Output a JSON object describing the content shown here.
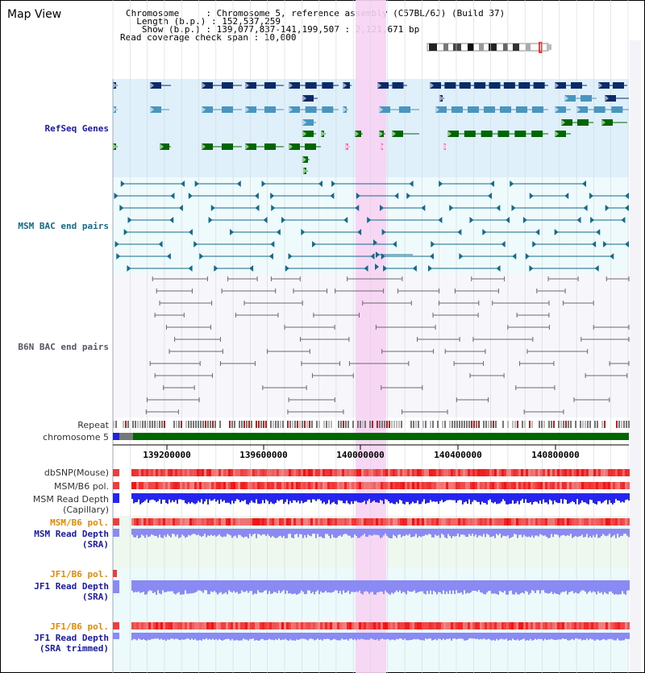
{
  "map_view": {
    "title": "Map View"
  },
  "info": {
    "chromosome": "Chromosome     : Chromosome 5, reference assembly (C57BL/6J) (Build 37)",
    "length": "  Length (b.p.) : 152,537,259",
    "show": "   Show (b.p.) : 139,077,837-141,199,507 : 2,121,671 bp",
    "read_span": "Read coverage check span : 10,000"
  },
  "tracks": {
    "refseq": "RefSeq Genes",
    "msm_bac": "MSM BAC end pairs",
    "b6n_bac": "B6N BAC end pairs",
    "repeat": "Repeat",
    "chromosome": "chromosome 5",
    "dbsnp": "dbSNP(Mouse)",
    "msm_b6_pol_1": "MSM/B6 pol.",
    "msm_read_depth_cap_1": "MSM Read Depth",
    "msm_read_depth_cap_2": "(Capillary)",
    "msm_b6_pol_2": "MSM/B6 pol.",
    "msm_read_depth_sra_1": "MSM Read Depth",
    "msm_read_depth_sra_2": "(SRA)",
    "jf1_b6_pol_1": "JF1/B6 pol.",
    "jf1_read_depth_sra_1": "JF1 Read Depth",
    "jf1_read_depth_sra_2": "(SRA)",
    "jf1_b6_pol_2": "JF1/B6 pol.",
    "jf1_read_depth_trim_1": "JF1 Read Depth",
    "jf1_read_depth_trim_2": "(SRA trimmed)"
  },
  "axis_ticks": [
    "139200000",
    "139600000",
    "140000000",
    "140400000",
    "140800000"
  ],
  "colors": {
    "refseq_bg": "#dff0fb",
    "bac_bg": "#eefafb",
    "highlight": "#f7d3f3",
    "gene_dark": "#0b2a66",
    "gene_mid": "#4a95c0",
    "gene_green": "#006600",
    "msm_bac": "#136a8a",
    "b6n_bac": "#6a6a6a",
    "pol_red": "#e84040",
    "depth_blue": "#2424ee",
    "depth_light": "#8a8af4"
  }
}
